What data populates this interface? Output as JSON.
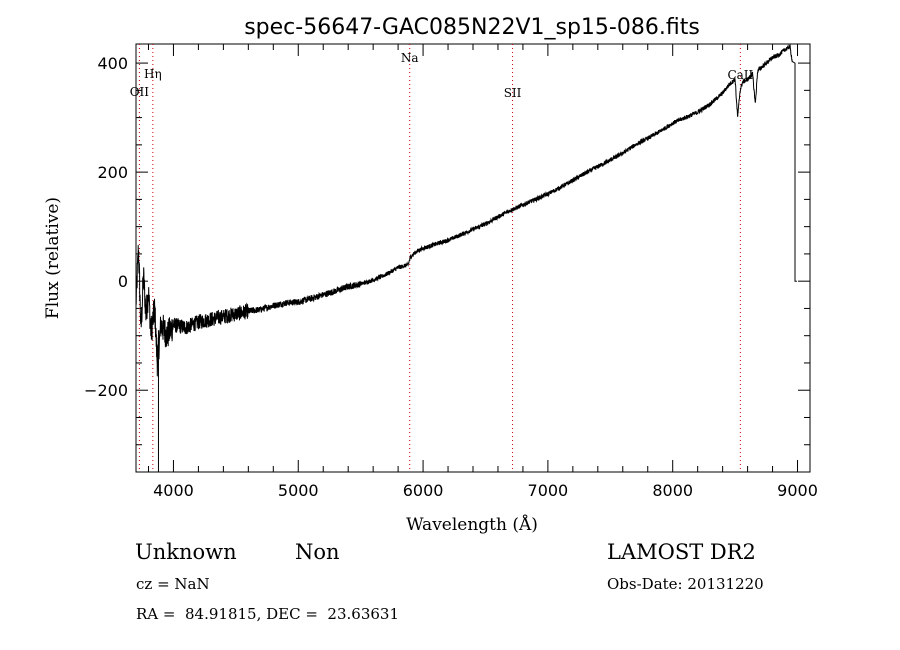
{
  "chart_data": {
    "type": "line",
    "title": "spec-56647-GAC085N22V1_sp15-086.fits",
    "xlabel": "Wavelength (Å)",
    "ylabel": "Flux (relative)",
    "xlim": [
      3700,
      9100
    ],
    "ylim": [
      -350,
      435
    ],
    "x_ticks": [
      4000,
      5000,
      6000,
      7000,
      8000,
      9000
    ],
    "y_ticks": [
      -200,
      0,
      200,
      400
    ],
    "grid": false,
    "line_color": "#000000",
    "marker_color": "#cc0000",
    "series": [
      {
        "x": [
          3700,
          3720,
          3740,
          3760,
          3780,
          3800,
          3820,
          3850,
          3870,
          3900,
          3950,
          4000,
          4100,
          4200,
          4300,
          4400,
          4500,
          4600,
          4700,
          4800,
          4900,
          5000,
          5100,
          5200,
          5300,
          5400,
          5500,
          5600,
          5700,
          5800,
          5880,
          5900,
          5950,
          6000,
          6100,
          6200,
          6300,
          6400,
          6500,
          6600,
          6700,
          6800,
          6900,
          7000,
          7100,
          7200,
          7300,
          7400,
          7500,
          7600,
          7700,
          7800,
          7900,
          8000,
          8100,
          8200,
          8300,
          8400,
          8450,
          8500,
          8520,
          8540,
          8560,
          8600,
          8640,
          8662,
          8680,
          8700,
          8750,
          8800,
          8850,
          8900,
          8940,
          8960,
          8980
        ],
        "y": [
          -40,
          60,
          -90,
          10,
          -60,
          -20,
          -95,
          -50,
          -150,
          -80,
          -100,
          -80,
          -85,
          -75,
          -70,
          -65,
          -60,
          -55,
          -52,
          -45,
          -40,
          -38,
          -32,
          -25,
          -18,
          -10,
          -5,
          2,
          12,
          25,
          30,
          45,
          55,
          60,
          68,
          75,
          85,
          95,
          105,
          118,
          130,
          140,
          150,
          160,
          172,
          185,
          198,
          210,
          222,
          235,
          250,
          262,
          275,
          290,
          300,
          310,
          325,
          345,
          360,
          370,
          300,
          350,
          365,
          370,
          380,
          325,
          385,
          390,
          400,
          410,
          415,
          425,
          430,
          400,
          0
        ]
      }
    ],
    "lines": [
      {
        "label": "OII",
        "x": 3727
      },
      {
        "label": "Hη",
        "x": 3835
      },
      {
        "label": "Na",
        "x": 5893
      },
      {
        "label": "SII",
        "x": 6717
      },
      {
        "label": "CaII",
        "x": 8542
      }
    ]
  },
  "info": {
    "class": "Unknown",
    "subclass": "Non",
    "survey": "LAMOST DR2",
    "cz": "cz = NaN",
    "obs_date": "Obs-Date: 20131220",
    "radec": "RA =  84.91815, DEC =  23.63631"
  }
}
